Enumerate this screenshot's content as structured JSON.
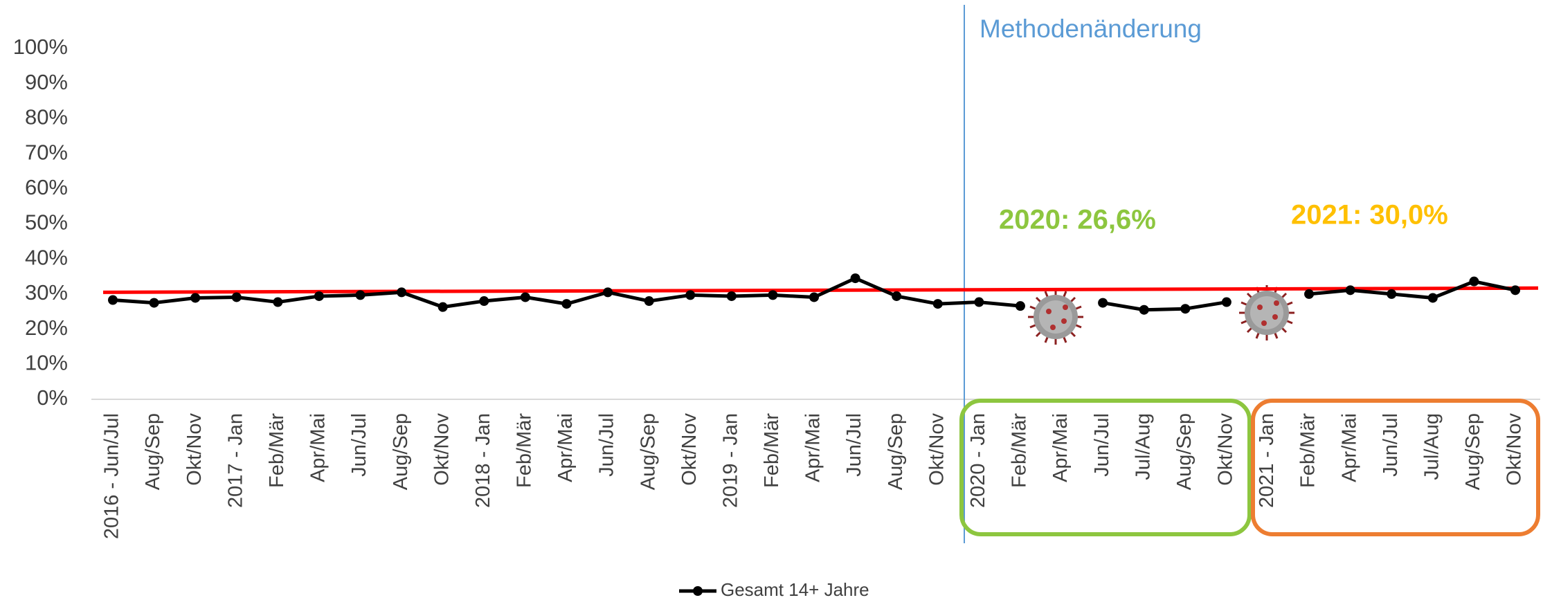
{
  "chart_data": {
    "type": "line",
    "categories": [
      "2016 - Jun/Jul",
      "Aug/Sep",
      "Okt/Nov",
      "2017 - Jan",
      "Feb/Mär",
      "Apr/Mai",
      "Jun/Jul",
      "Aug/Sep",
      "Okt/Nov",
      "2018 - Jan",
      "Feb/Mär",
      "Apr/Mai",
      "Jun/Jul",
      "Aug/Sep",
      "Okt/Nov",
      "2019 - Jan",
      "Feb/Mär",
      "Apr/Mai",
      "Jun/Jul",
      "Aug/Sep",
      "Okt/Nov",
      "2020 - Jan",
      "Feb/Mär",
      "Apr/Mai",
      "Jun/Jul",
      "Jul/Aug",
      "Aug/Sep",
      "Okt/Nov",
      "2021 - Jan",
      "Feb/Mär",
      "Apr/Mai",
      "Jun/Jul",
      "Jul/Aug",
      "Aug/Sep",
      "Okt/Nov"
    ],
    "series": [
      {
        "name": "Gesamt 14+ Jahre",
        "color": "#000000",
        "values": [
          28.3,
          27.5,
          28.9,
          29.1,
          27.7,
          29.4,
          29.7,
          30.5,
          26.3,
          28.0,
          29.1,
          27.2,
          30.5,
          28.0,
          29.7,
          29.4,
          29.7,
          29.1,
          34.5,
          29.4,
          27.2,
          27.7,
          26.6,
          null,
          27.5,
          25.5,
          25.8,
          27.7,
          null,
          30.0,
          31.1,
          30.0,
          28.9,
          33.6,
          31.1
        ]
      }
    ],
    "trend_line": {
      "color": "#ff0000",
      "values": [
        30.5,
        31.7
      ]
    },
    "ylim": [
      0,
      100
    ],
    "yticks": [
      {
        "value": 0,
        "label": "0%"
      },
      {
        "value": 10,
        "label": "10%"
      },
      {
        "value": 20,
        "label": "20%"
      },
      {
        "value": 30,
        "label": "30%"
      },
      {
        "value": 40,
        "label": "40%"
      },
      {
        "value": 50,
        "label": "50%"
      },
      {
        "value": 60,
        "label": "60%"
      },
      {
        "value": 70,
        "label": "70%"
      },
      {
        "value": 80,
        "label": "80%"
      },
      {
        "value": 90,
        "label": "90%"
      },
      {
        "value": 100,
        "label": "100%"
      }
    ],
    "grid": false,
    "legend": "bottom",
    "annotations": [
      {
        "text": "Methodenänderung",
        "color": "#5b9bd5"
      },
      {
        "text": "2020: 26,6%",
        "color": "#8dc63f"
      },
      {
        "text": "2021: 30,0%",
        "color": "#ffc000"
      }
    ]
  }
}
